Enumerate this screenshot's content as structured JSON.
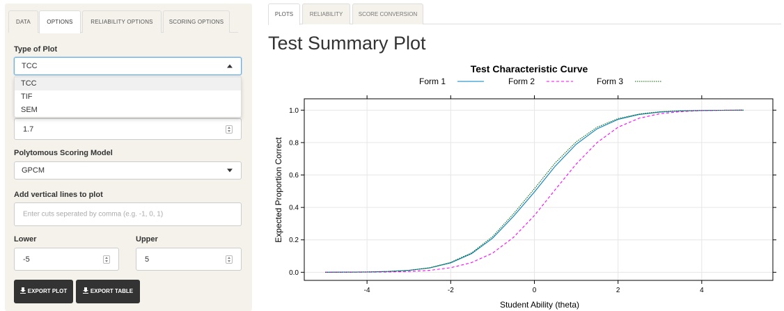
{
  "sidebar": {
    "tabs": [
      "DATA",
      "OPTIONS",
      "RELIABILITY OPTIONS",
      "SCORING OPTIONS"
    ],
    "type_of_plot": {
      "label": "Type of Plot",
      "value": "TCC",
      "options": [
        "TCC",
        "TIF",
        "SEM"
      ]
    },
    "scaling_value": "1.7",
    "poly_model": {
      "label": "Polytomous Scoring Model",
      "value": "GPCM"
    },
    "vertical_lines": {
      "label": "Add vertical lines to plot",
      "placeholder": "Enter cuts seperated by comma (e.g. -1, 0, 1)"
    },
    "lower": {
      "label": "Lower",
      "value": "-5"
    },
    "upper": {
      "label": "Upper",
      "value": "5"
    },
    "export_plot": "EXPORT PLOT",
    "export_table": "EXPORT TABLE"
  },
  "main": {
    "tabs": [
      "PLOTS",
      "RELIABILITY",
      "SCORE CONVERSION"
    ],
    "title": "Test Summary Plot"
  },
  "chart_data": {
    "type": "line",
    "title": "Test Characteristic Curve",
    "xlabel": "Student Ability (theta)",
    "ylabel": "Expected Proportion Correct",
    "xlim": [
      -5.5,
      5.7
    ],
    "ylim": [
      -0.05,
      1.07
    ],
    "xticks": [
      -4,
      -2,
      0,
      2,
      4
    ],
    "yticks": [
      0.0,
      0.2,
      0.4,
      0.6,
      0.8,
      1.0
    ],
    "grid": true,
    "legend_position": "top",
    "x": [
      -5,
      -4.5,
      -4,
      -3.5,
      -3,
      -2.5,
      -2,
      -1.5,
      -1,
      -0.5,
      0,
      0.5,
      1,
      1.5,
      2,
      2.5,
      3,
      3.5,
      4,
      4.5,
      5
    ],
    "series": [
      {
        "name": "Form 1",
        "color": "#0080c0",
        "style": "solid",
        "values": [
          0.0,
          0.001,
          0.002,
          0.005,
          0.012,
          0.027,
          0.058,
          0.115,
          0.21,
          0.345,
          0.495,
          0.655,
          0.79,
          0.885,
          0.943,
          0.973,
          0.988,
          0.995,
          0.998,
          0.999,
          1.0
        ]
      },
      {
        "name": "Form 2",
        "color": "#ff00ff",
        "style": "dashed",
        "values": [
          0.0,
          0.0,
          0.001,
          0.002,
          0.005,
          0.012,
          0.028,
          0.06,
          0.118,
          0.215,
          0.35,
          0.51,
          0.668,
          0.8,
          0.895,
          0.95,
          0.978,
          0.991,
          0.997,
          0.999,
          1.0
        ]
      },
      {
        "name": "Form 3",
        "color": "#006400",
        "style": "dotted",
        "values": [
          0.0,
          0.001,
          0.002,
          0.005,
          0.012,
          0.028,
          0.061,
          0.12,
          0.22,
          0.36,
          0.515,
          0.675,
          0.805,
          0.895,
          0.948,
          0.976,
          0.99,
          0.996,
          0.998,
          0.999,
          1.0
        ]
      }
    ]
  }
}
